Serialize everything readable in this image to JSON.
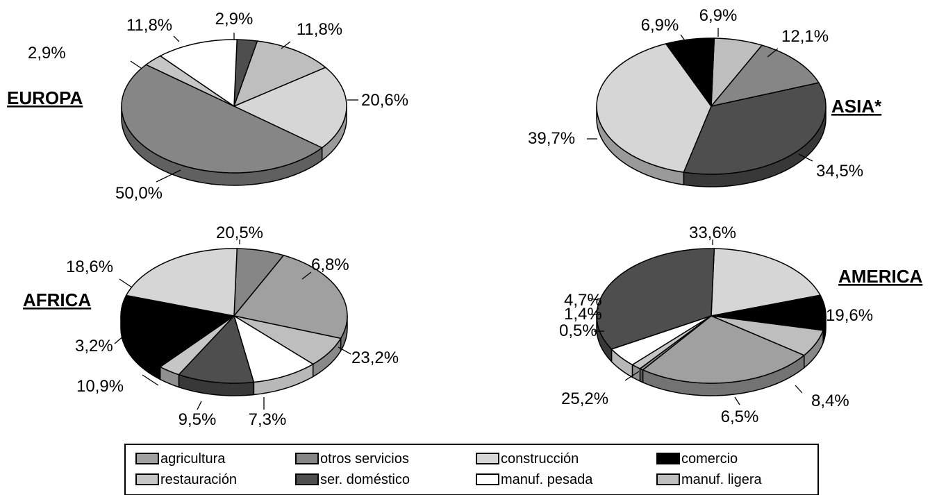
{
  "colors": {
    "agricultura": "#a0a0a0",
    "otros servicios": "#868686",
    "construcción": "#d6d6d6",
    "comercio": "#000000",
    "restauración": "#c6c6c6",
    "ser. doméstico": "#4e4e4e",
    "manuf. pesada": "#ffffff",
    "manuf. ligera": "#bebebe",
    "marker": "#2a3f7a"
  },
  "legend": {
    "items": [
      "agricultura",
      "otros servicios",
      "construcción",
      "comercio",
      "restauración",
      "ser. doméstico",
      "manuf. pesada",
      "manuf. ligera"
    ]
  },
  "chart_data": [
    {
      "type": "pie",
      "title": "EUROPA",
      "slices": [
        {
          "category": "ser. doméstico",
          "value": 2.9,
          "label": "2,9%"
        },
        {
          "category": "manuf. ligera",
          "value": 11.8,
          "label": "11,8%"
        },
        {
          "category": "construcción",
          "value": 20.6,
          "label": "20,6%"
        },
        {
          "category": "otros servicios",
          "value": 50.0,
          "label": "50,0%"
        },
        {
          "category": "restauración",
          "value": 2.9,
          "label": "2,9%"
        },
        {
          "category": "manuf. pesada",
          "value": 11.8,
          "label": "11,8%"
        }
      ]
    },
    {
      "type": "pie",
      "title": "ASIA*",
      "slices": [
        {
          "category": "manuf. ligera",
          "value": 6.9,
          "label": "6,9%"
        },
        {
          "category": "otros servicios",
          "value": 12.1,
          "label": "12,1%"
        },
        {
          "category": "ser. doméstico",
          "value": 34.5,
          "label": "34,5%"
        },
        {
          "category": "construcción",
          "value": 39.7,
          "label": "39,7%"
        },
        {
          "category": "comercio",
          "value": 6.9,
          "label": "6,9%"
        }
      ]
    },
    {
      "type": "pie",
      "title": "AFRICA",
      "slices": [
        {
          "category": "otros servicios",
          "value": 6.8,
          "label": "6,8%"
        },
        {
          "category": "agricultura",
          "value": 23.2,
          "label": "23,2%"
        },
        {
          "category": "manuf. ligera",
          "value": 7.3,
          "label": "7,3%"
        },
        {
          "category": "manuf. pesada",
          "value": 9.5,
          "label": "9,5%"
        },
        {
          "category": "ser. doméstico",
          "value": 10.9,
          "label": "10,9%"
        },
        {
          "category": "restauración",
          "value": 3.2,
          "label": "3,2%"
        },
        {
          "category": "comercio",
          "value": 18.6,
          "label": "18,6%"
        },
        {
          "category": "construcción",
          "value": 20.5,
          "label": "20,5%"
        }
      ]
    },
    {
      "type": "pie",
      "title": "AMERICA",
      "slices": [
        {
          "category": "construcción",
          "value": 19.6,
          "label": "19,6%"
        },
        {
          "category": "comercio",
          "value": 8.4,
          "label": "8,4%"
        },
        {
          "category": "manuf. ligera",
          "value": 6.5,
          "label": "6,5%"
        },
        {
          "category": "agricultura",
          "value": 25.2,
          "label": "25,2%"
        },
        {
          "category": "otros servicios",
          "value": 0.5,
          "label": "0,5%"
        },
        {
          "category": "restauración",
          "value": 1.4,
          "label": "1,4%"
        },
        {
          "category": "manuf. pesada",
          "value": 4.7,
          "label": "4,7%"
        },
        {
          "category": "ser. doméstico",
          "value": 33.6,
          "label": "33,6%"
        }
      ]
    }
  ]
}
